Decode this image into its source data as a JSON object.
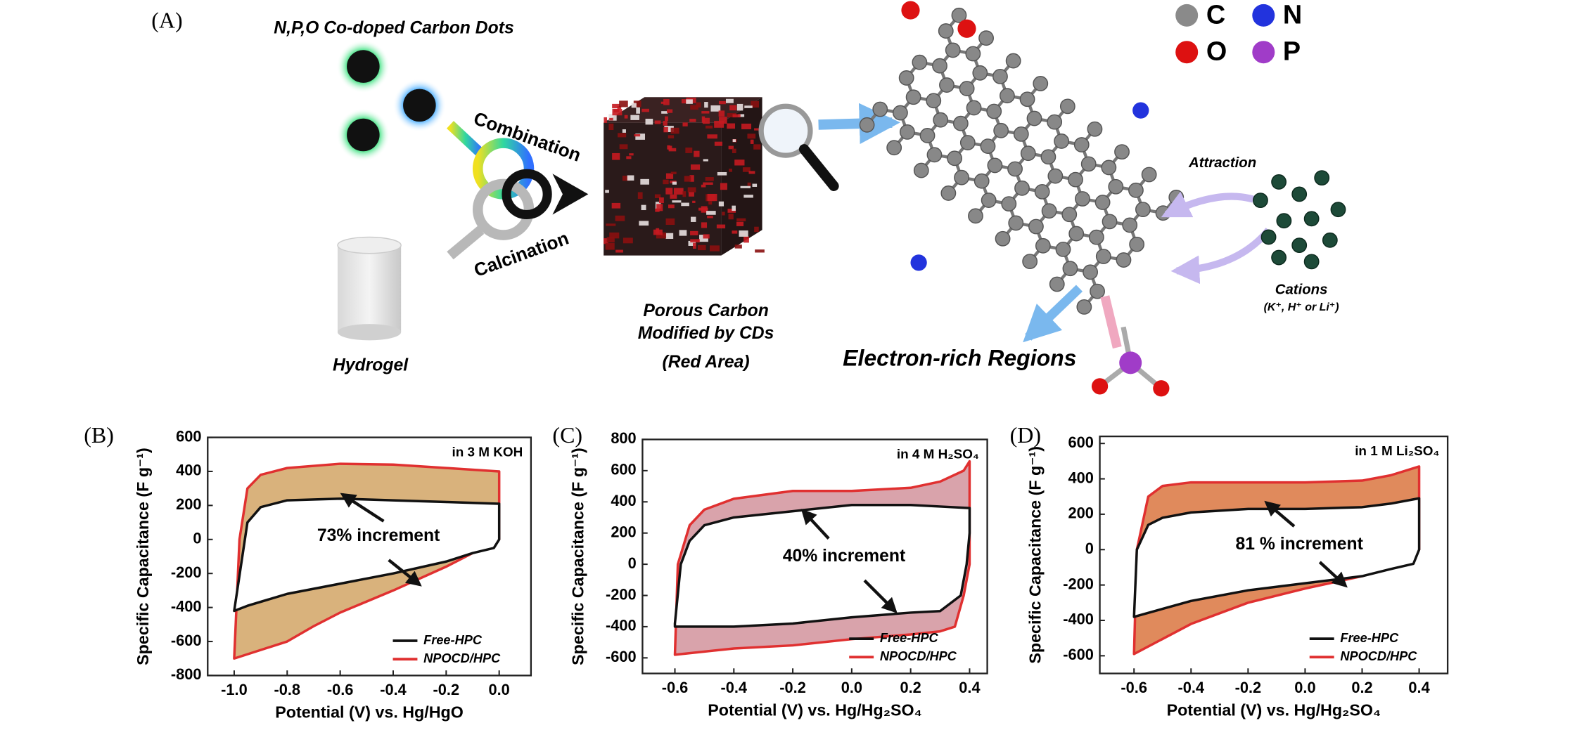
{
  "panel_a": {
    "label": "(A)",
    "carbon_dots_title": "N,P,O Co-doped Carbon Dots",
    "combination": "Combination",
    "calcination": "Calcination",
    "hydrogel": "Hydrogel",
    "porous_carbon": [
      "Porous Carbon",
      "Modified by CDs",
      "(Red Area)"
    ],
    "electron_rich": "Electron-rich Regions",
    "attraction": "Attraction",
    "cations": "Cations",
    "cations_note": "(K⁺, H⁺ or Li⁺)",
    "element_legend": [
      {
        "symbol": "C",
        "color": "#8a8a8a"
      },
      {
        "symbol": "N",
        "color": "#2233dd"
      },
      {
        "symbol": "O",
        "color": "#dd1111"
      },
      {
        "symbol": "P",
        "color": "#a03cc8"
      }
    ]
  },
  "chart_data": [
    {
      "type": "line",
      "panel_label": "(B)",
      "annotation": "in 3 M KOH",
      "increment_label": "73% increment",
      "x_label": "Potential (V) vs. Hg/HgO",
      "y_label": "Specific Capacitance (F g⁻¹)",
      "xlim": [
        -1.1,
        0.12
      ],
      "ylim": [
        -800,
        600
      ],
      "xticks": [
        {
          "value": -1,
          "label": "-1.0"
        },
        -0.8,
        -0.6,
        -0.4,
        -0.2,
        {
          "value": 0,
          "label": "0.0"
        }
      ],
      "yticks": [
        -800,
        -600,
        -400,
        -200,
        0,
        200,
        400,
        600
      ],
      "legend": "lower right",
      "series": [
        {
          "name": "NPOCD/HPC",
          "color": "#e03030",
          "fill": "#d9b27c",
          "x": [
            -1.0,
            -0.98,
            -0.95,
            -0.9,
            -0.8,
            -0.6,
            -0.4,
            -0.2,
            0.0,
            0.0,
            -0.05,
            -0.2,
            -0.4,
            -0.6,
            -0.7,
            -0.8,
            -0.9,
            -1.0
          ],
          "values": [
            -700,
            0,
            300,
            380,
            420,
            445,
            440,
            420,
            400,
            0,
            -40,
            -160,
            -300,
            -430,
            -510,
            -600,
            -650,
            -700
          ]
        },
        {
          "name": "Free-HPC",
          "color": "#111111",
          "fill": "#ffffff",
          "x": [
            -1.0,
            -0.95,
            -0.9,
            -0.8,
            -0.6,
            -0.4,
            -0.2,
            0.0,
            0.0,
            -0.02,
            -0.1,
            -0.2,
            -0.4,
            -0.6,
            -0.8,
            -0.95,
            -1.0
          ],
          "values": [
            -420,
            100,
            190,
            230,
            240,
            230,
            220,
            210,
            0,
            -50,
            -80,
            -130,
            -200,
            -260,
            -320,
            -390,
            -420
          ]
        }
      ]
    },
    {
      "type": "line",
      "panel_label": "(C)",
      "annotation": "in 4 M H₂SO₄",
      "increment_label": "40% increment",
      "x_label": "Potential (V) vs. Hg/Hg₂SO₄",
      "y_label": "Specific Capacitance (F g⁻¹)",
      "xlim": [
        -0.71,
        0.46
      ],
      "ylim": [
        -700,
        800
      ],
      "xticks": [
        -0.6,
        -0.4,
        -0.2,
        {
          "value": 0,
          "label": "0.0"
        },
        0.2,
        0.4
      ],
      "yticks": [
        -600,
        -400,
        -200,
        0,
        200,
        400,
        600,
        800
      ],
      "legend": "lower right",
      "series": [
        {
          "name": "NPOCD/HPC",
          "color": "#e03030",
          "fill": "#d9a3ab",
          "x": [
            -0.6,
            -0.59,
            -0.55,
            -0.5,
            -0.4,
            -0.2,
            0.0,
            0.2,
            0.3,
            0.38,
            0.4,
            0.4,
            0.38,
            0.35,
            0.3,
            0.2,
            0.0,
            -0.2,
            -0.4,
            -0.6
          ],
          "values": [
            -580,
            0,
            250,
            350,
            420,
            470,
            470,
            490,
            530,
            600,
            660,
            0,
            -200,
            -400,
            -430,
            -450,
            -480,
            -520,
            -540,
            -580
          ]
        },
        {
          "name": "Free-HPC",
          "color": "#111111",
          "fill": "#ffffff",
          "x": [
            -0.6,
            -0.58,
            -0.55,
            -0.5,
            -0.4,
            -0.2,
            0.0,
            0.2,
            0.3,
            0.4,
            0.4,
            0.39,
            0.37,
            0.3,
            0.2,
            0.0,
            -0.2,
            -0.4,
            -0.6,
            -0.6
          ],
          "values": [
            -380,
            0,
            150,
            250,
            300,
            340,
            380,
            380,
            370,
            360,
            200,
            0,
            -200,
            -300,
            -310,
            -340,
            -380,
            -400,
            -400,
            -380
          ]
        }
      ]
    },
    {
      "type": "line",
      "panel_label": "(D)",
      "annotation": "in 1 M Li₂SO₄",
      "increment_label": "81 % increment",
      "x_label": "Potential (V) vs. Hg/Hg₂SO₄",
      "y_label": "Specific Capacitance (F g⁻¹)",
      "xlim": [
        -0.72,
        0.5
      ],
      "ylim": [
        -700,
        640
      ],
      "xticks": [
        -0.6,
        -0.4,
        -0.2,
        {
          "value": 0,
          "label": "0.0"
        },
        0.2,
        0.4
      ],
      "yticks": [
        -600,
        -400,
        -200,
        0,
        200,
        400,
        600
      ],
      "legend": "lower right",
      "series": [
        {
          "name": "NPOCD/HPC",
          "color": "#e03030",
          "fill": "#e08a5c",
          "x": [
            -0.6,
            -0.59,
            -0.55,
            -0.5,
            -0.4,
            -0.2,
            0.0,
            0.2,
            0.3,
            0.4,
            0.4,
            0.38,
            0.3,
            0.2,
            0.0,
            -0.2,
            -0.4,
            -0.6
          ],
          "values": [
            -590,
            0,
            300,
            360,
            380,
            380,
            380,
            390,
            420,
            470,
            0,
            -60,
            -100,
            -150,
            -220,
            -300,
            -420,
            -590
          ]
        },
        {
          "name": "Free-HPC",
          "color": "#111111",
          "fill": "#ffffff",
          "x": [
            -0.6,
            -0.59,
            -0.55,
            -0.5,
            -0.4,
            -0.2,
            0.0,
            0.2,
            0.3,
            0.4,
            0.4,
            0.38,
            0.3,
            0.2,
            0.0,
            -0.2,
            -0.4,
            -0.6
          ],
          "values": [
            -380,
            0,
            140,
            180,
            210,
            230,
            230,
            240,
            260,
            290,
            0,
            -80,
            -110,
            -150,
            -190,
            -230,
            -290,
            -380
          ]
        }
      ]
    }
  ]
}
